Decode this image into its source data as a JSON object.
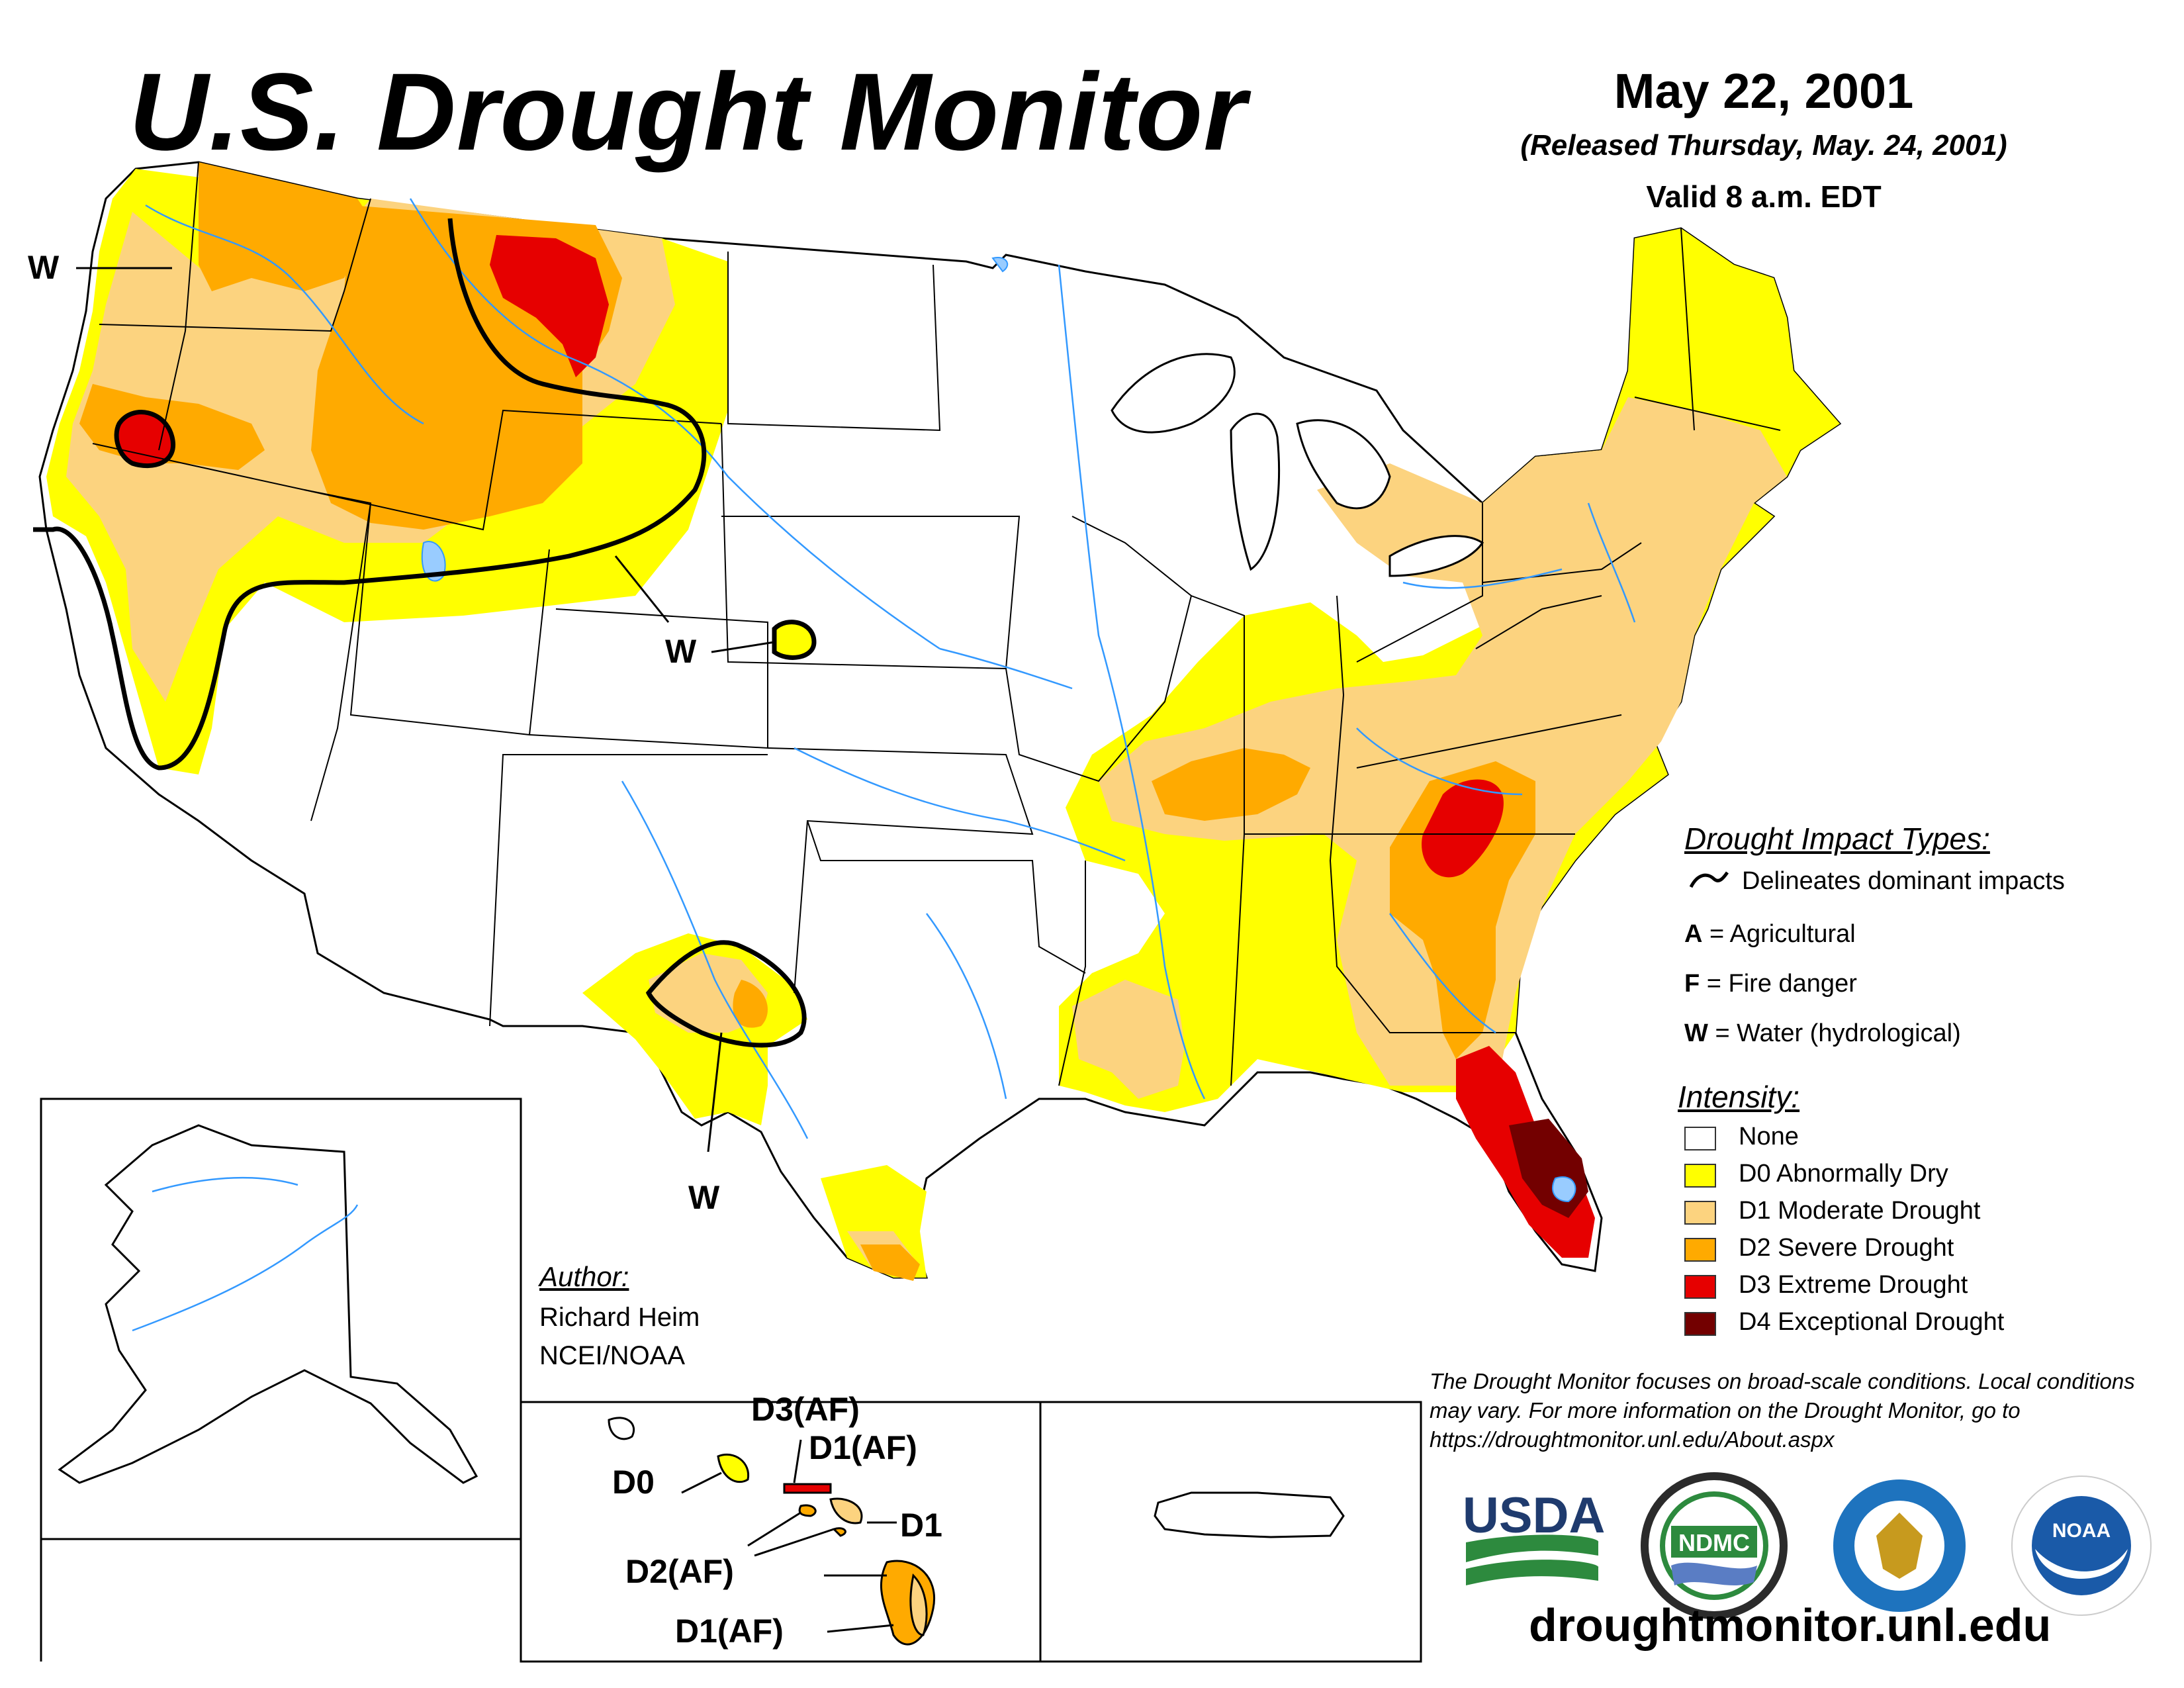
{
  "header": {
    "title": "U.S. Drought Monitor",
    "date": "May 22, 2001",
    "released": "(Released Thursday, May. 24, 2001)",
    "valid": "Valid 8 a.m. EDT"
  },
  "map_labels": {
    "w_northwest": "W",
    "w_colorado": "W",
    "w_texas": "W",
    "hawaii_d0": "D0",
    "hawaii_d3af": "D3(AF)",
    "hawaii_d1af_top": "D1(AF)",
    "hawaii_d1": "D1",
    "hawaii_d2af": "D2(AF)",
    "hawaii_d1af_bottom": "D1(AF)"
  },
  "legend": {
    "impact_title": "Drought Impact Types:",
    "delineates": "Delineates dominant impacts",
    "impacts": [
      {
        "code": "A",
        "label": "= Agricultural"
      },
      {
        "code": "F",
        "label": "= Fire danger"
      },
      {
        "code": "W",
        "label": "= Water (hydrological)"
      }
    ],
    "intensity_title": "Intensity:",
    "intensity": [
      {
        "label": "None",
        "color": "#ffffff"
      },
      {
        "label": "D0 Abnormally Dry",
        "color": "#ffff00"
      },
      {
        "label": "D1 Moderate Drought",
        "color": "#fcd37f"
      },
      {
        "label": "D2 Severe Drought",
        "color": "#ffaa00"
      },
      {
        "label": "D3 Extreme Drought",
        "color": "#e60000"
      },
      {
        "label": "D4 Exceptional Drought",
        "color": "#730000"
      }
    ]
  },
  "author": {
    "heading": "Author:",
    "name": "Richard Heim",
    "org": "NCEI/NOAA"
  },
  "disclaimer": "The Drought Monitor focuses on broad-scale conditions. Local conditions may vary. For more information on the Drought Monitor, go to https://droughtmonitor.unl.edu/About.aspx",
  "logos": {
    "usda": "USDA",
    "ndmc": "NDMC",
    "noaa": "NOAA"
  },
  "url": "droughtmonitor.unl.edu"
}
